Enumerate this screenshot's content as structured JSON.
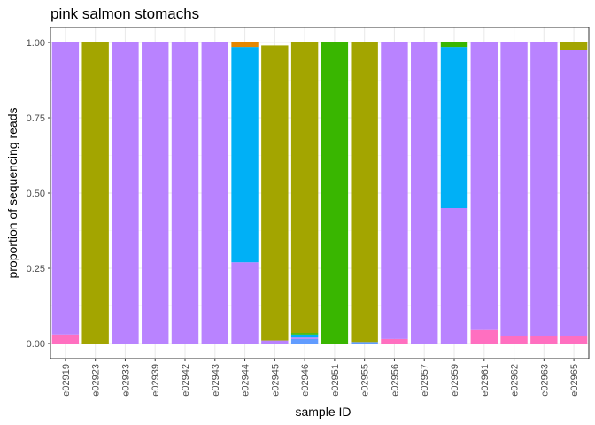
{
  "chart_data": {
    "type": "bar",
    "stacked": true,
    "title": "pink salmon stomachs",
    "xlabel": "sample ID",
    "ylabel": "proportion of sequencing reads",
    "ylim": [
      0,
      1
    ],
    "yticks": [
      "0.00",
      "0.25",
      "0.50",
      "0.75",
      "1.00"
    ],
    "grid": true,
    "legend": "none",
    "categories": [
      "e02919",
      "e02923",
      "e02933",
      "e02939",
      "e02942",
      "e02943",
      "e02944",
      "e02945",
      "e02946",
      "e02951",
      "e02955",
      "e02956",
      "e02957",
      "e02959",
      "e02961",
      "e02962",
      "e02963",
      "e02965"
    ],
    "series": [
      {
        "color": "#FF6FC0",
        "values": [
          0.03,
          0,
          0,
          0,
          0,
          0,
          0,
          0,
          0,
          0,
          0,
          0.015,
          0,
          0,
          0.045,
          0.025,
          0.025,
          0.025
        ]
      },
      {
        "color": "#619CFF",
        "values": [
          0,
          0,
          0,
          0,
          0,
          0,
          0,
          0,
          0.015,
          0,
          0.005,
          0,
          0,
          0,
          0,
          0,
          0,
          0
        ]
      },
      {
        "color": "#B983FF",
        "values": [
          0.97,
          0,
          1,
          1,
          1,
          1,
          0.27,
          0.01,
          0.005,
          0,
          0,
          0.985,
          1,
          0.45,
          0.955,
          0.975,
          0.975,
          0.95
        ]
      },
      {
        "color": "#00B0F6",
        "values": [
          0,
          0,
          0,
          0,
          0,
          0,
          0.715,
          0,
          0.01,
          0,
          0,
          0,
          0,
          0.535,
          0,
          0,
          0,
          0
        ]
      },
      {
        "color": "#39B600",
        "values": [
          0,
          0,
          0,
          0,
          0,
          0,
          0,
          0,
          0.005,
          1,
          0,
          0,
          0,
          0.015,
          0,
          0,
          0,
          0
        ]
      },
      {
        "color": "#A3A500",
        "values": [
          0,
          1,
          0,
          0,
          0,
          0,
          0,
          0.98,
          0.965,
          0,
          0.995,
          0,
          0,
          0,
          0,
          0,
          0,
          0.025
        ]
      },
      {
        "color": "#E58700",
        "values": [
          0,
          0,
          0,
          0,
          0,
          0,
          0.015,
          0,
          0,
          0,
          0,
          0,
          0,
          0,
          0,
          0,
          0,
          0
        ]
      }
    ]
  }
}
